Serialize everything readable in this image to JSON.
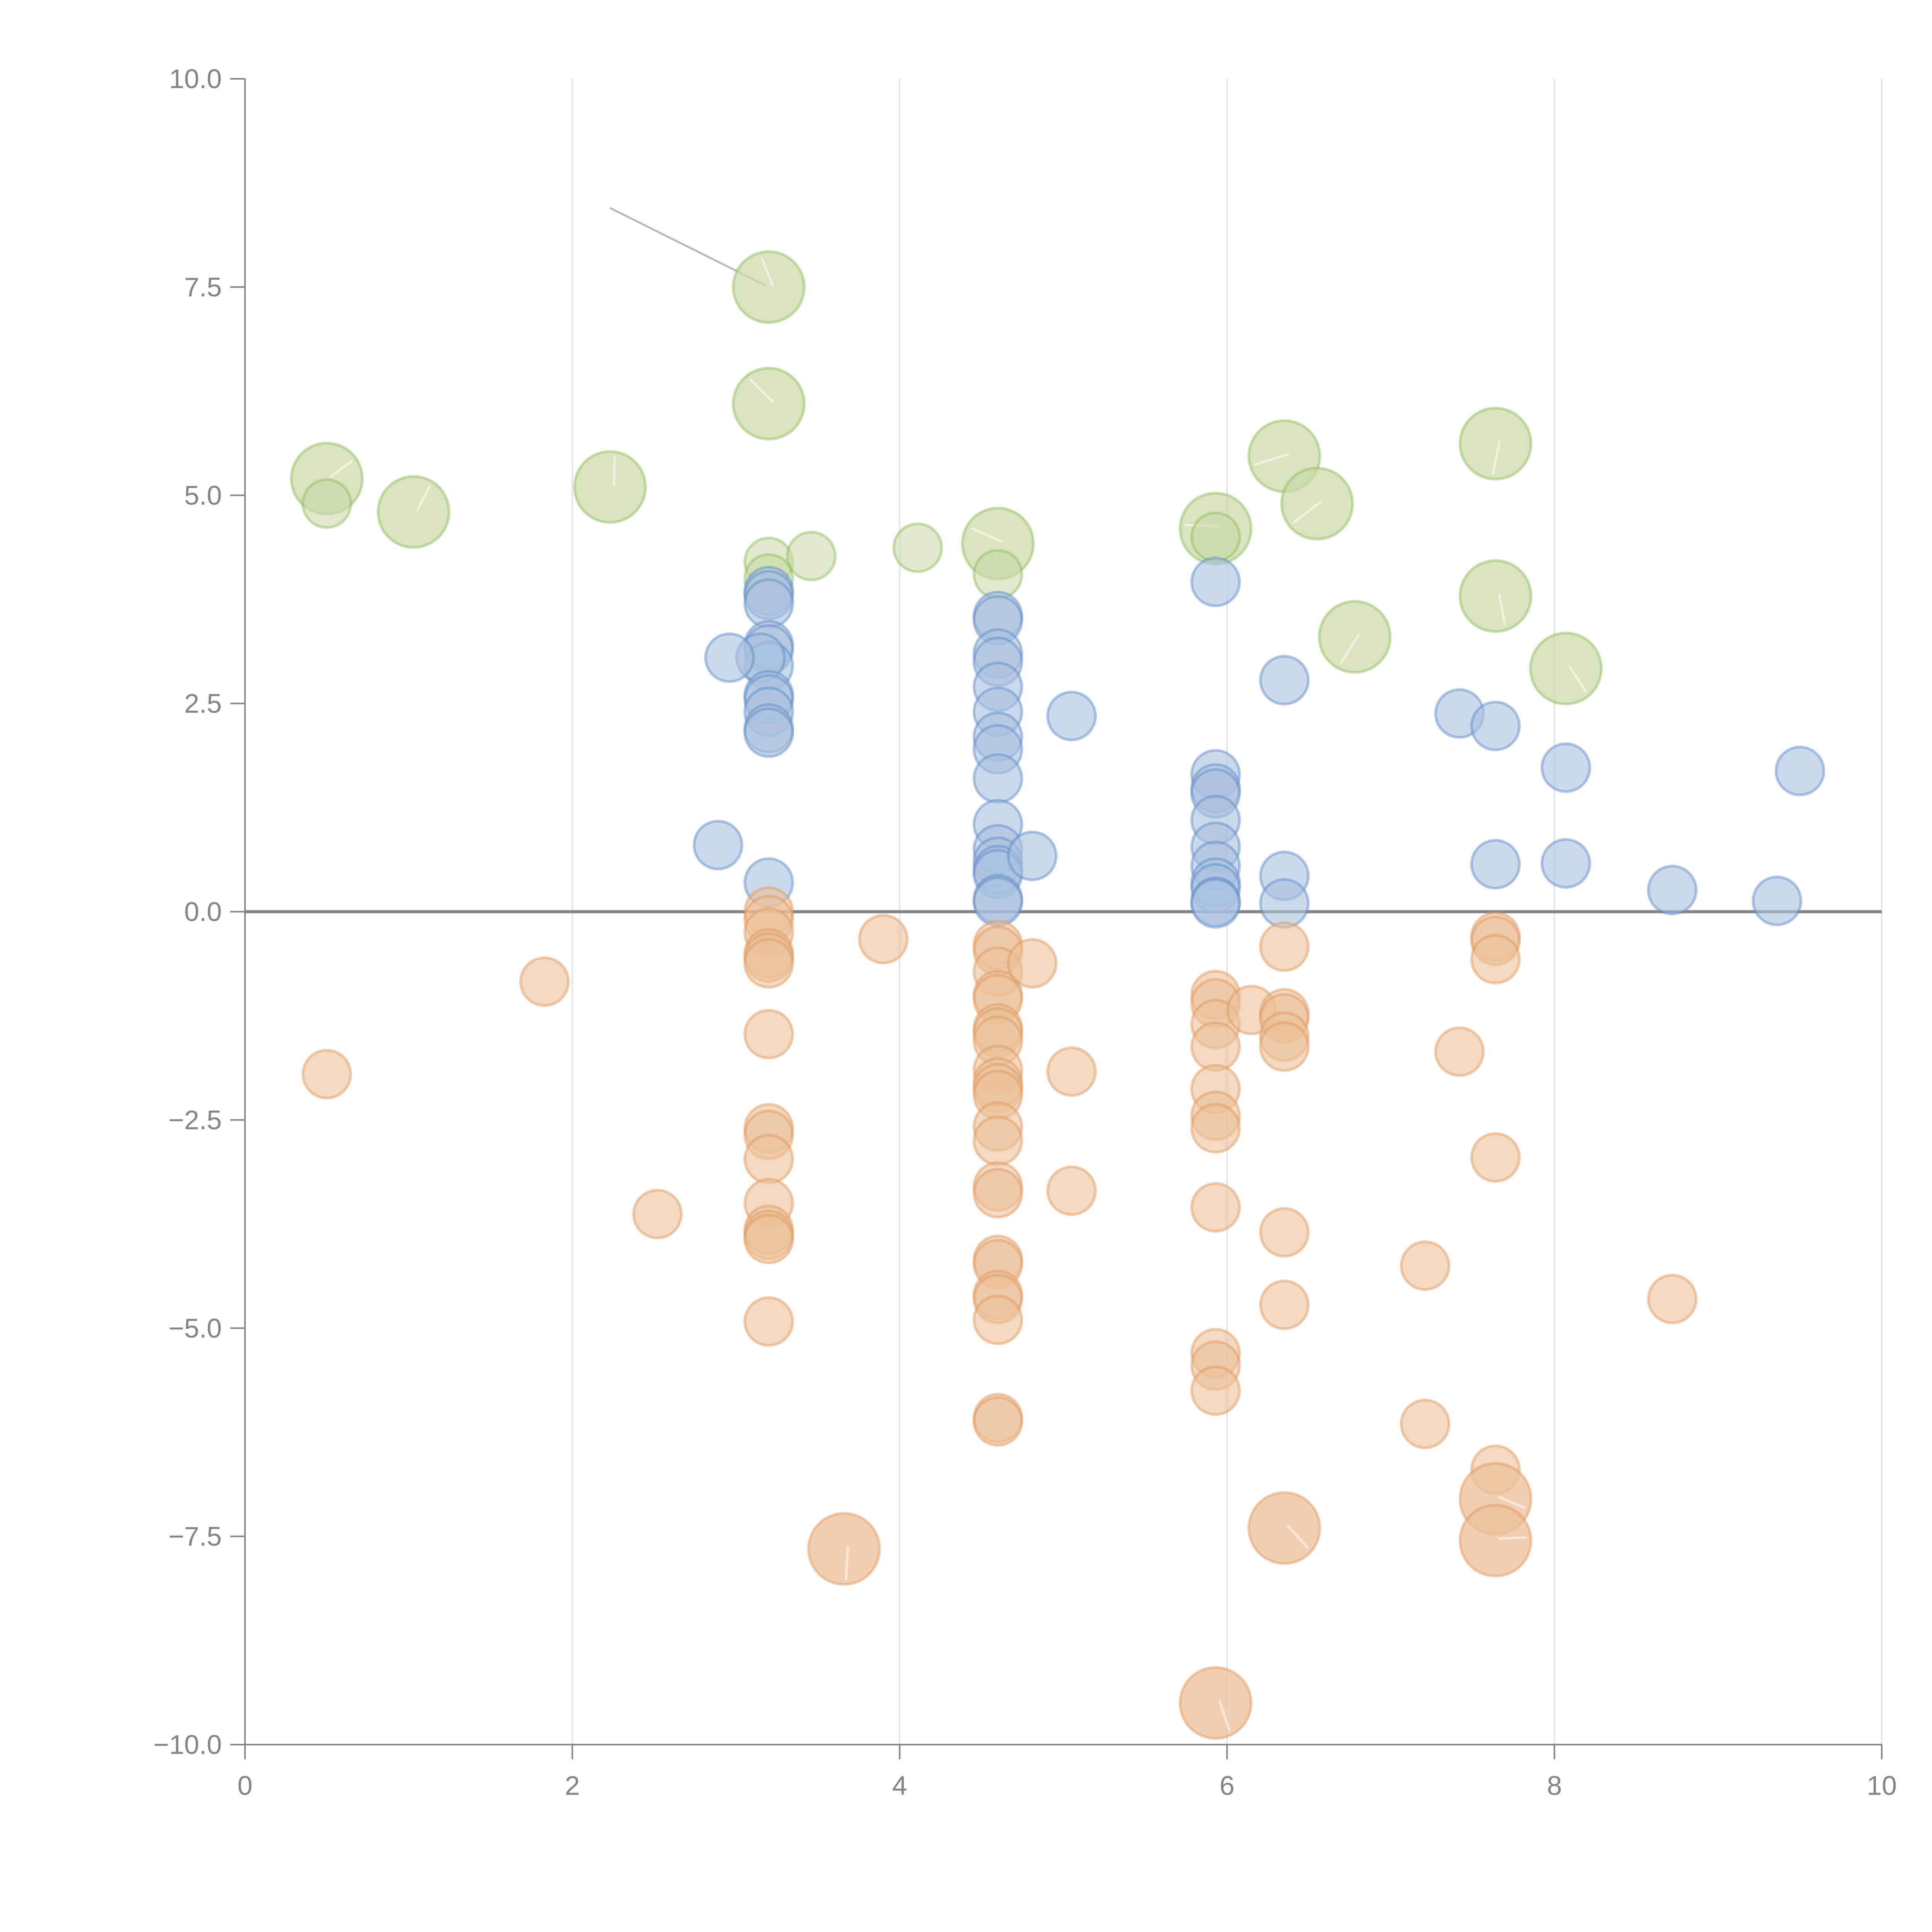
{
  "chart_data": {
    "type": "scatter",
    "title": "",
    "xlabel": "",
    "ylabel": "",
    "xlim": [
      0,
      10
    ],
    "ylim": [
      -10,
      10
    ],
    "grid": "vertical",
    "x_ticks": [
      0,
      2,
      4,
      6,
      8,
      10
    ],
    "x_tick_labels": [
      "0",
      "2",
      "4",
      "6",
      "8",
      "10"
    ],
    "y_ticks": [
      10,
      7.5,
      5,
      2.5,
      0,
      -2.5,
      -5,
      -7.5,
      -10
    ],
    "y_tick_labels": [
      "10.0",
      "7.5",
      "5.0",
      "2.5",
      "0.0",
      "−2.5",
      "−5.0",
      "−7.5",
      "−10.0"
    ],
    "zero_line": 0,
    "legend": "none",
    "series": [
      {
        "name": "green",
        "color": "#8fb85a",
        "fill": "#c9dba8",
        "points": [
          {
            "x": 0.5,
            "y": 5.2,
            "size": "large"
          },
          {
            "x": 1.03,
            "y": 4.8,
            "size": "large"
          },
          {
            "x": 2.23,
            "y": 5.1,
            "size": "large"
          },
          {
            "x": 3.2,
            "y": 7.5,
            "size": "large"
          },
          {
            "x": 3.2,
            "y": 6.1,
            "size": "large"
          },
          {
            "x": 4.6,
            "y": 4.42,
            "size": "large"
          },
          {
            "x": 5.93,
            "y": 4.6,
            "size": "large"
          },
          {
            "x": 6.35,
            "y": 5.47,
            "size": "large"
          },
          {
            "x": 6.55,
            "y": 4.9,
            "size": "large"
          },
          {
            "x": 6.78,
            "y": 3.3,
            "size": "large"
          },
          {
            "x": 7.64,
            "y": 5.62,
            "size": "large"
          },
          {
            "x": 7.64,
            "y": 3.79,
            "size": "large"
          },
          {
            "x": 8.07,
            "y": 2.92,
            "size": "large"
          },
          {
            "x": 0.5,
            "y": 4.9,
            "size": "small"
          },
          {
            "x": 3.2,
            "y": 4.2,
            "size": "small"
          },
          {
            "x": 3.2,
            "y": 4.0,
            "size": "small"
          },
          {
            "x": 3.46,
            "y": 4.27,
            "size": "small"
          },
          {
            "x": 4.11,
            "y": 4.37,
            "size": "small"
          },
          {
            "x": 4.6,
            "y": 4.05,
            "size": "small"
          },
          {
            "x": 5.93,
            "y": 4.5,
            "size": "small"
          }
        ]
      },
      {
        "name": "blue",
        "color": "#5b87c5",
        "fill": "#a9c0e0",
        "points": [
          {
            "x": 3.2,
            "y": 3.85
          },
          {
            "x": 3.2,
            "y": 3.8
          },
          {
            "x": 3.2,
            "y": 3.7
          },
          {
            "x": 3.2,
            "y": 3.2
          },
          {
            "x": 3.2,
            "y": 3.15
          },
          {
            "x": 3.2,
            "y": 2.95
          },
          {
            "x": 3.15,
            "y": 3.05
          },
          {
            "x": 2.96,
            "y": 3.05
          },
          {
            "x": 3.2,
            "y": 2.6
          },
          {
            "x": 3.2,
            "y": 2.55
          },
          {
            "x": 3.2,
            "y": 2.4
          },
          {
            "x": 3.2,
            "y": 2.2
          },
          {
            "x": 3.2,
            "y": 2.15
          },
          {
            "x": 2.89,
            "y": 0.8
          },
          {
            "x": 3.2,
            "y": 0.35
          },
          {
            "x": 4.6,
            "y": 3.55
          },
          {
            "x": 4.6,
            "y": 3.5
          },
          {
            "x": 4.6,
            "y": 3.1
          },
          {
            "x": 4.6,
            "y": 3.0
          },
          {
            "x": 4.6,
            "y": 2.7
          },
          {
            "x": 4.6,
            "y": 2.4
          },
          {
            "x": 4.6,
            "y": 2.1
          },
          {
            "x": 4.6,
            "y": 1.95
          },
          {
            "x": 4.6,
            "y": 1.6
          },
          {
            "x": 4.6,
            "y": 1.05
          },
          {
            "x": 4.6,
            "y": 0.75
          },
          {
            "x": 4.6,
            "y": 0.6
          },
          {
            "x": 4.6,
            "y": 0.5
          },
          {
            "x": 4.6,
            "y": 0.45
          },
          {
            "x": 4.6,
            "y": 0.15
          },
          {
            "x": 4.6,
            "y": 0.12
          },
          {
            "x": 4.81,
            "y": 0.67
          },
          {
            "x": 5.05,
            "y": 2.35
          },
          {
            "x": 5.93,
            "y": 3.96
          },
          {
            "x": 5.93,
            "y": 1.65
          },
          {
            "x": 5.93,
            "y": 1.48
          },
          {
            "x": 5.93,
            "y": 1.42
          },
          {
            "x": 5.93,
            "y": 1.1
          },
          {
            "x": 5.93,
            "y": 0.78
          },
          {
            "x": 5.93,
            "y": 0.55
          },
          {
            "x": 5.93,
            "y": 0.35
          },
          {
            "x": 5.93,
            "y": 0.28
          },
          {
            "x": 5.93,
            "y": 0.12
          },
          {
            "x": 5.93,
            "y": 0.1
          },
          {
            "x": 6.35,
            "y": 2.78
          },
          {
            "x": 6.35,
            "y": 0.43
          },
          {
            "x": 6.35,
            "y": 0.1
          },
          {
            "x": 7.42,
            "y": 2.38
          },
          {
            "x": 7.64,
            "y": 2.23
          },
          {
            "x": 7.64,
            "y": 0.57
          },
          {
            "x": 8.07,
            "y": 1.73
          },
          {
            "x": 8.07,
            "y": 0.58
          },
          {
            "x": 8.72,
            "y": 0.26
          },
          {
            "x": 9.36,
            "y": 0.13
          },
          {
            "x": 9.5,
            "y": 1.69
          }
        ]
      },
      {
        "name": "orange",
        "color": "#e0955a",
        "fill": "#ebbf98",
        "points": [
          {
            "x": 0.5,
            "y": -1.95
          },
          {
            "x": 1.83,
            "y": -0.84
          },
          {
            "x": 2.52,
            "y": -3.63
          },
          {
            "x": 3.2,
            "y": 0.0
          },
          {
            "x": 3.2,
            "y": -0.1
          },
          {
            "x": 3.2,
            "y": -0.25
          },
          {
            "x": 3.2,
            "y": -0.5
          },
          {
            "x": 3.2,
            "y": -0.55
          },
          {
            "x": 3.2,
            "y": -0.62
          },
          {
            "x": 3.2,
            "y": -1.47
          },
          {
            "x": 3.2,
            "y": -2.6
          },
          {
            "x": 3.2,
            "y": -2.68
          },
          {
            "x": 3.2,
            "y": -2.97
          },
          {
            "x": 3.2,
            "y": -3.5
          },
          {
            "x": 3.2,
            "y": -3.82
          },
          {
            "x": 3.2,
            "y": -3.88
          },
          {
            "x": 3.2,
            "y": -3.93
          },
          {
            "x": 3.2,
            "y": -4.92
          },
          {
            "x": 3.9,
            "y": -0.33
          },
          {
            "x": 4.6,
            "y": -0.4
          },
          {
            "x": 4.6,
            "y": -0.47
          },
          {
            "x": 4.6,
            "y": -0.72
          },
          {
            "x": 4.6,
            "y": -1.0
          },
          {
            "x": 4.6,
            "y": -1.05
          },
          {
            "x": 4.6,
            "y": -1.4
          },
          {
            "x": 4.6,
            "y": -1.45
          },
          {
            "x": 4.6,
            "y": -1.55
          },
          {
            "x": 4.6,
            "y": -1.9
          },
          {
            "x": 4.6,
            "y": -2.05
          },
          {
            "x": 4.6,
            "y": -2.12
          },
          {
            "x": 4.6,
            "y": -2.2
          },
          {
            "x": 4.6,
            "y": -2.58
          },
          {
            "x": 4.6,
            "y": -2.75
          },
          {
            "x": 4.6,
            "y": -3.3
          },
          {
            "x": 4.6,
            "y": -3.38
          },
          {
            "x": 4.6,
            "y": -4.18
          },
          {
            "x": 4.6,
            "y": -4.23
          },
          {
            "x": 4.6,
            "y": -4.6
          },
          {
            "x": 4.6,
            "y": -4.65
          },
          {
            "x": 4.6,
            "y": -4.9
          },
          {
            "x": 4.6,
            "y": -6.08
          },
          {
            "x": 4.6,
            "y": -6.12
          },
          {
            "x": 4.81,
            "y": -0.62
          },
          {
            "x": 5.05,
            "y": -1.92
          },
          {
            "x": 5.05,
            "y": -3.35
          },
          {
            "x": 5.93,
            "y": -1.0
          },
          {
            "x": 5.93,
            "y": -1.1
          },
          {
            "x": 5.93,
            "y": -1.35
          },
          {
            "x": 5.93,
            "y": -1.62
          },
          {
            "x": 5.93,
            "y": -2.13
          },
          {
            "x": 5.93,
            "y": -2.45
          },
          {
            "x": 5.93,
            "y": -2.6
          },
          {
            "x": 5.93,
            "y": -3.55
          },
          {
            "x": 5.93,
            "y": -5.3
          },
          {
            "x": 5.93,
            "y": -5.45
          },
          {
            "x": 5.93,
            "y": -5.75
          },
          {
            "x": 6.15,
            "y": -1.18
          },
          {
            "x": 6.35,
            "y": -0.42
          },
          {
            "x": 6.35,
            "y": -1.22
          },
          {
            "x": 6.35,
            "y": -1.28
          },
          {
            "x": 6.35,
            "y": -1.5
          },
          {
            "x": 6.35,
            "y": -1.62
          },
          {
            "x": 6.35,
            "y": -3.85
          },
          {
            "x": 6.35,
            "y": -4.72
          },
          {
            "x": 7.21,
            "y": -4.25
          },
          {
            "x": 7.21,
            "y": -6.15
          },
          {
            "x": 7.42,
            "y": -1.68
          },
          {
            "x": 7.64,
            "y": -0.3
          },
          {
            "x": 7.64,
            "y": -0.35
          },
          {
            "x": 7.64,
            "y": -0.57
          },
          {
            "x": 7.64,
            "y": -2.95
          },
          {
            "x": 7.64,
            "y": -6.7
          },
          {
            "x": 8.72,
            "y": -4.65
          },
          {
            "x": 3.66,
            "y": -7.65,
            "size": "large"
          },
          {
            "x": 5.93,
            "y": -9.5,
            "size": "large"
          },
          {
            "x": 6.35,
            "y": -7.4,
            "size": "large"
          },
          {
            "x": 7.64,
            "y": -7.05,
            "size": "large"
          },
          {
            "x": 7.64,
            "y": -7.55,
            "size": "large"
          }
        ]
      }
    ],
    "annotations": [
      {
        "type": "leader-line",
        "from": {
          "x": 2.23,
          "y": 8.45
        },
        "to": {
          "x": 3.18,
          "y": 7.52
        }
      }
    ]
  }
}
